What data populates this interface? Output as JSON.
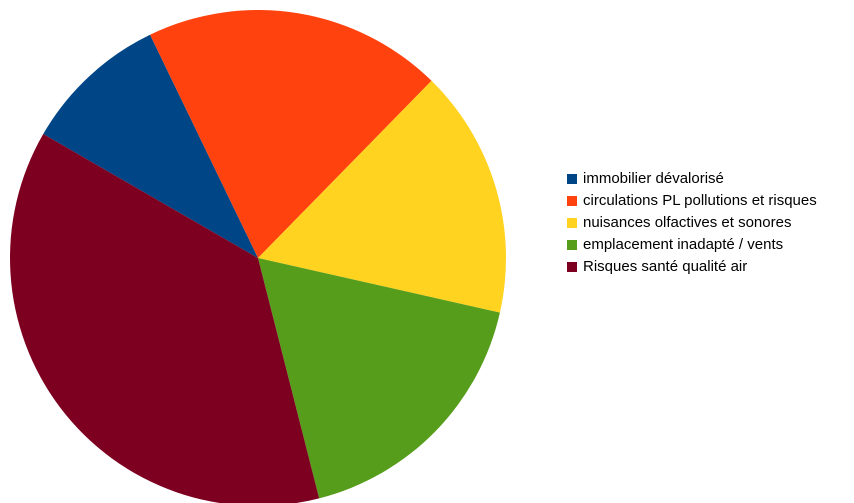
{
  "chart_data": {
    "type": "pie",
    "categories": [
      "immobilier dévalorisé",
      "circulations PL pollutions et risques",
      "nuisances olfactives et sonores",
      "emplacement inadapté / vents",
      "Risques santé qualité air"
    ],
    "values": [
      9.5,
      19.5,
      16.2,
      17.5,
      37.3
    ],
    "colors": [
      "#004586",
      "#ff420e",
      "#ffd320",
      "#579d1c",
      "#7e0021"
    ],
    "start_angle_deg": 300,
    "legend_position": "right",
    "title": ""
  }
}
